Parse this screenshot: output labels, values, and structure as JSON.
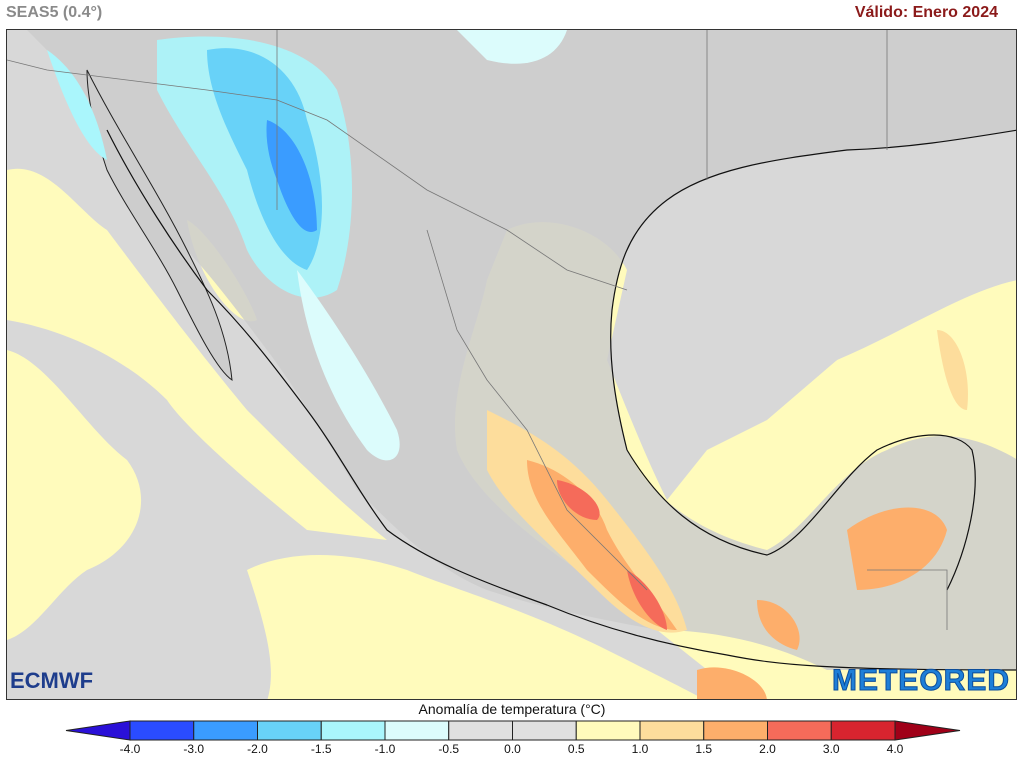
{
  "header": {
    "model": "SEAS5 (0.4°)",
    "valid": "Válido: Enero 2024"
  },
  "logos": {
    "left": "ECMWF",
    "right": "METEORED"
  },
  "legend": {
    "title": "Anomalía de temperatura (°C)",
    "ticks": [
      "-4.0",
      "-3.0",
      "-2.0",
      "-1.5",
      "-1.0",
      "-0.5",
      "0.0",
      "0.5",
      "1.0",
      "1.5",
      "2.0",
      "3.0",
      "4.0"
    ],
    "colors": [
      "#2a4cff",
      "#3a9cff",
      "#68d2f8",
      "#aaf6fc",
      "#dcfcfc",
      "#e0e0e0",
      "#e0e0e0",
      "#fffbbc",
      "#fddd9c",
      "#fdae6b",
      "#f56b5a",
      "#d8242f"
    ],
    "under_color": "#2a10d8",
    "over_color": "#a00018"
  },
  "map": {
    "ocean_color": "#d9d9d9",
    "land_color": "#cfcfcf",
    "region": "Mexico and Central America"
  }
}
